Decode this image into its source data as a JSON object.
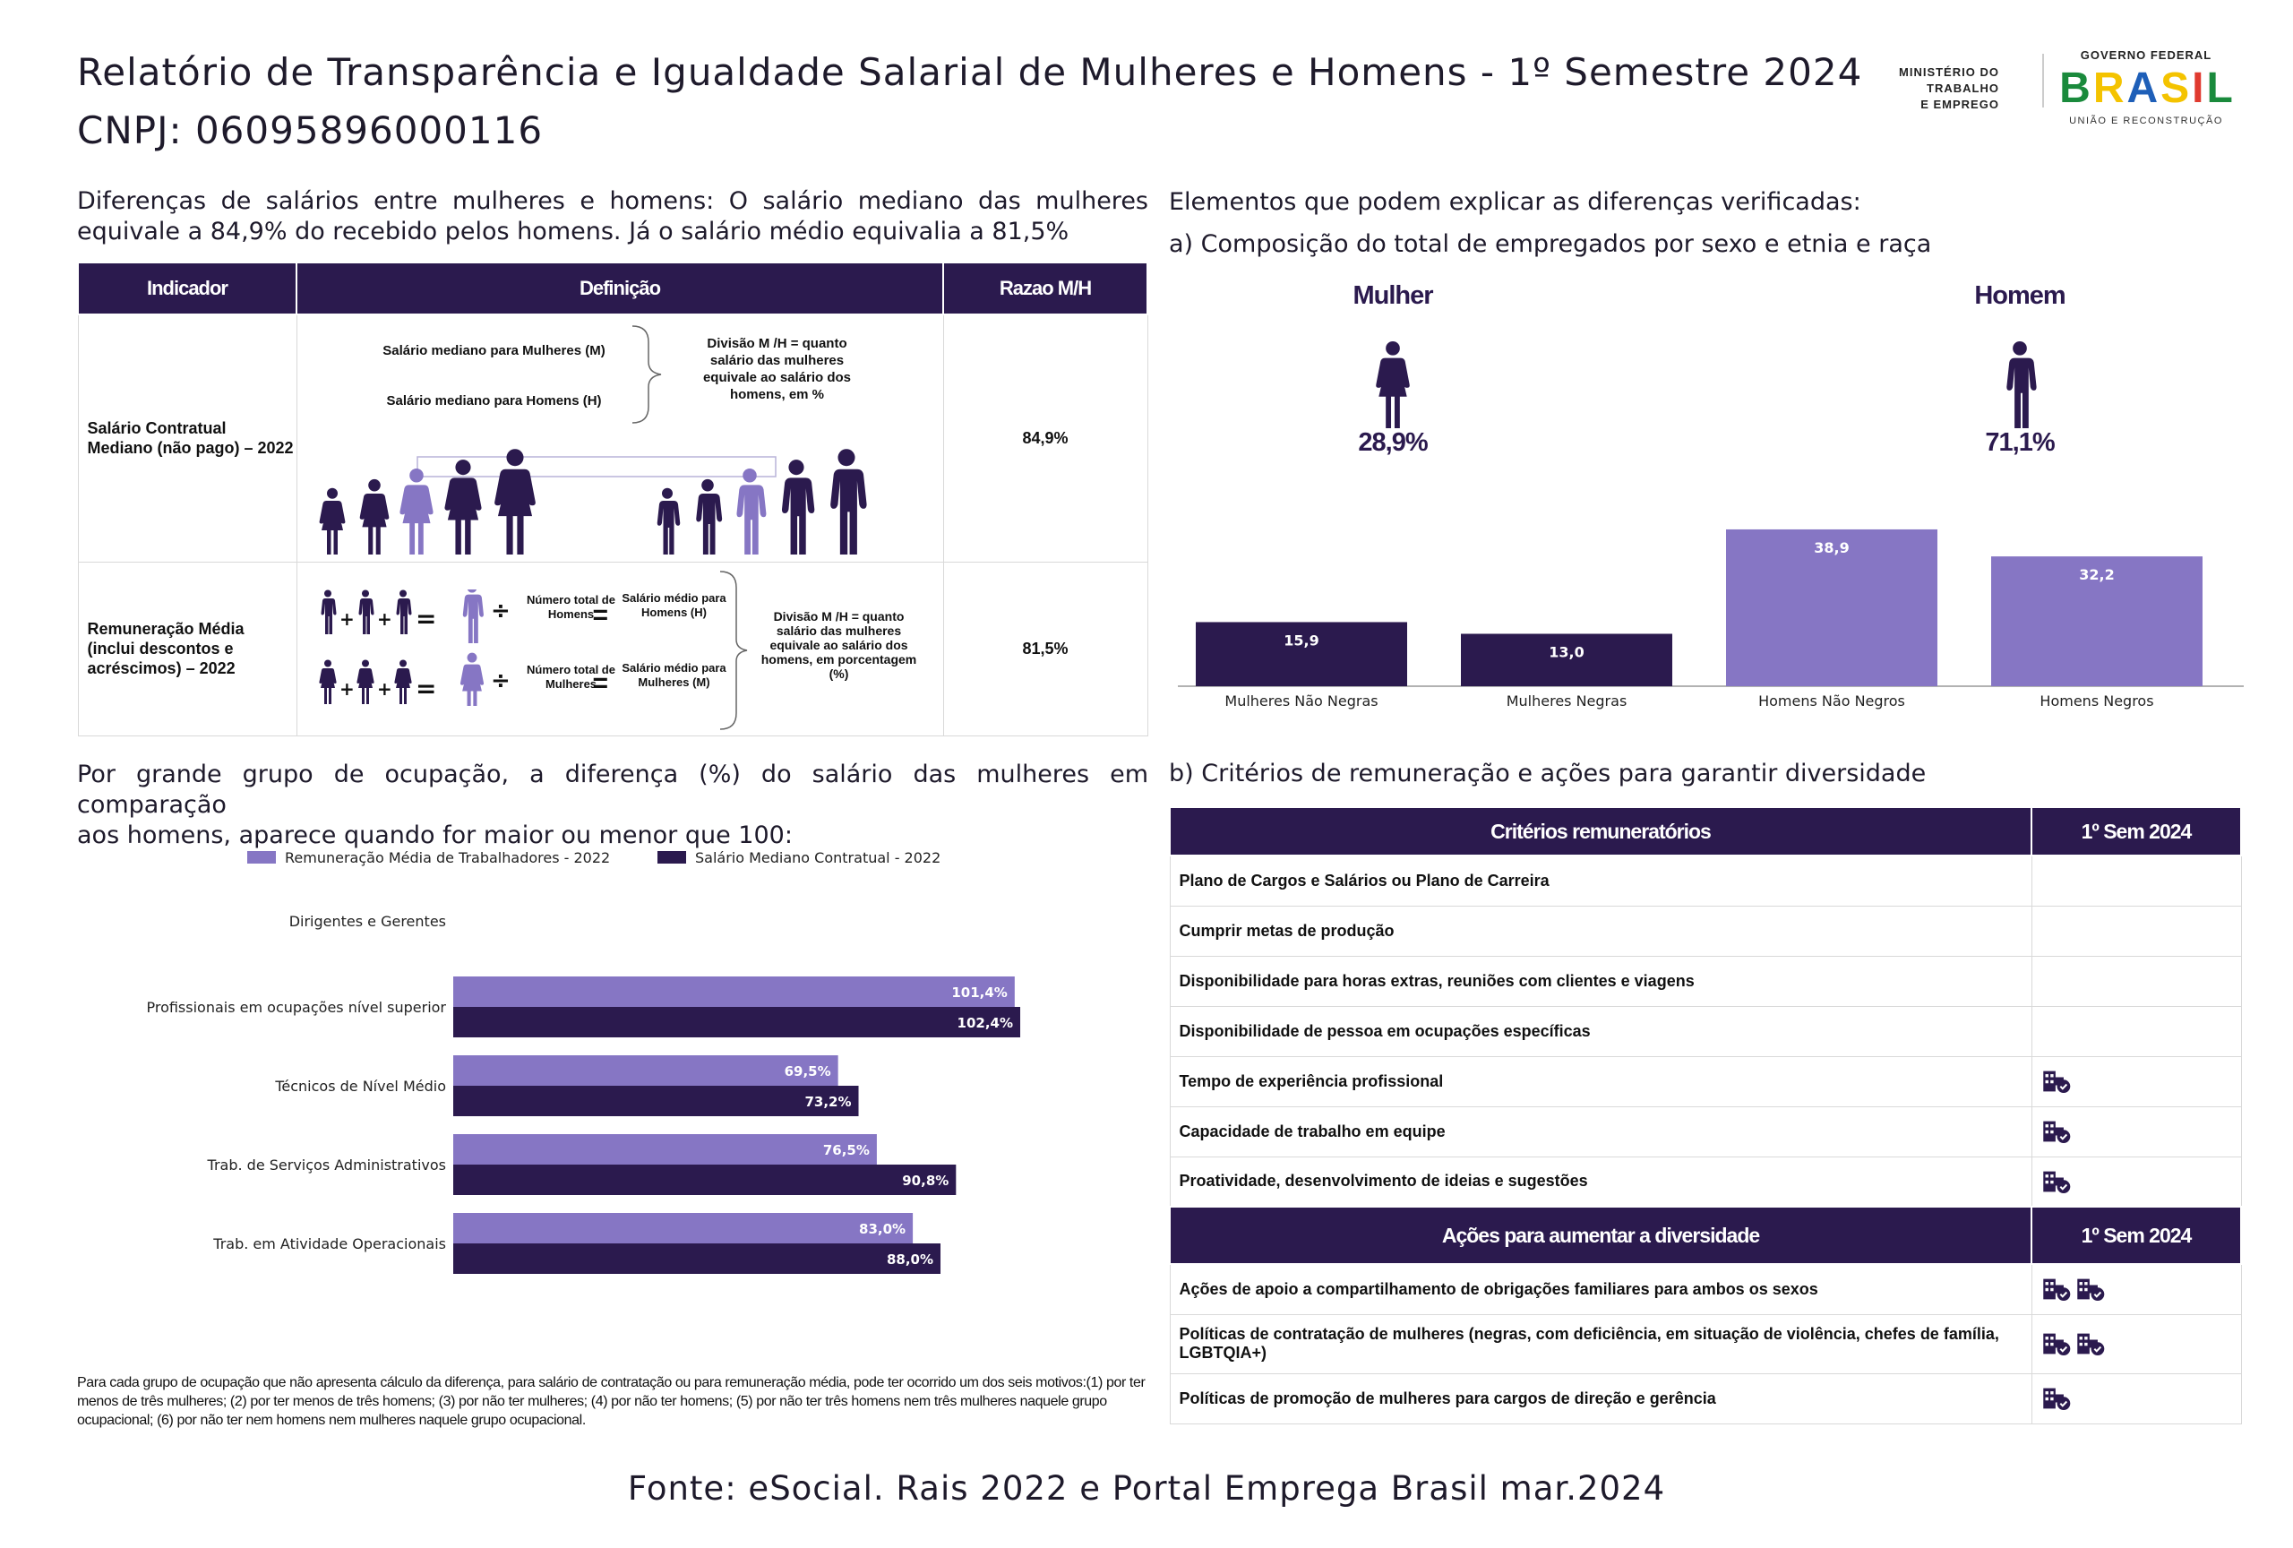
{
  "header": {
    "title_line1": "Relatório de Transparência e Igualdade Salarial de Mulheres e Homens - 1º Semestre 2024",
    "title_line2": "CNPJ: 06095896000116",
    "ministry_l1": "MINISTÉRIO DO",
    "ministry_l2": "TRABALHO",
    "ministry_l3": "E EMPREGO",
    "gov_top": "GOVERNO FEDERAL",
    "gov_brasil": [
      "B",
      "R",
      "A",
      "S",
      "I",
      "L"
    ],
    "gov_bottom": "UNIÃO E RECONSTRUÇÃO"
  },
  "colors": {
    "dark": "#2b1a4e",
    "light": "#8676c4",
    "brasil": [
      "#1a8a3c",
      "#f4c300",
      "#1e5fb8",
      "#f4c300",
      "#e03a2f",
      "#1a8a3c"
    ]
  },
  "intro": {
    "line1": "Diferenças de salários entre mulheres e homens: O salário mediano das mulheres",
    "line2": "equivale a 84,9% do recebido pelos homens. Já o salário médio equivalia a 81,5%"
  },
  "indicator_table": {
    "headers": [
      "Indicador",
      "Definição",
      "Razao M/H"
    ],
    "row1": {
      "indicator": "Salário Contratual Mediano (não pago) – 2022",
      "women_label": "Salário mediano para Mulheres (M)",
      "men_label": "Salário mediano para Homens (H)",
      "division_text": "Divisão M /H = quanto salário das mulheres equivale ao salário dos homens, em %",
      "ratio": "84,9%"
    },
    "row2": {
      "indicator": "Remuneração Média (inclui descontos e acréscimos) – 2022",
      "total_men": "Número total de Homens",
      "total_women": "Número total de Mulheres",
      "avg_men": "Salário médio para Homens (H)",
      "avg_women": "Salário médio para Mulheres (M)",
      "division_text": "Divisão M /H = quanto salário das mulheres equivale ao salário dos homens, em porcentagem (%)",
      "ratio": "81,5%"
    }
  },
  "elements": {
    "heading": "Elementos que podem explicar as diferenças verificadas:",
    "sub_a": "a) Composição do total de empregados por sexo e etnia e raça",
    "woman_label": "Mulher",
    "woman_pct": "28,9%",
    "man_label": "Homem",
    "man_pct": "71,1%"
  },
  "occupation": {
    "line1": "Por grande grupo de ocupação, a diferença (%) do salário das mulheres em comparação",
    "line2": "aos homens, aparece quando for maior ou menor que 100:"
  },
  "chart_data": [
    {
      "type": "bar",
      "title": "",
      "categories": [
        "Mulheres Não Negras",
        "Mulheres Negras",
        "Homens Não Negros",
        "Homens Negros"
      ],
      "values": [
        15.9,
        13.0,
        38.9,
        32.2
      ],
      "labels": [
        "15,9",
        "13,0",
        "38,9",
        "32,2"
      ],
      "colors": [
        "#2b1a4e",
        "#2b1a4e",
        "#8676c4",
        "#8676c4"
      ],
      "ylim": [
        0,
        40
      ]
    },
    {
      "type": "bar",
      "orientation": "horizontal",
      "categories": [
        "Dirigentes e Gerentes",
        "Profissionais em ocupações nível superior",
        "Técnicos de Nível Médio",
        "Trab. de Serviços Administrativos",
        "Trab. em Atividade Operacionais"
      ],
      "series": [
        {
          "name": "Remuneração Média de Trabalhadores - 2022",
          "values": [
            null,
            101.4,
            69.5,
            76.5,
            83.0
          ],
          "labels": [
            "",
            "101,4%",
            "69,5%",
            "76,5%",
            "83,0%"
          ],
          "color": "#8676c4"
        },
        {
          "name": "Salário Mediano Contratual - 2022",
          "values": [
            null,
            102.4,
            73.2,
            90.8,
            88.0
          ],
          "labels": [
            "",
            "102,4%",
            "73,2%",
            "90,8%",
            "88,0%"
          ],
          "color": "#2b1a4e"
        }
      ],
      "xlim": [
        0,
        110
      ]
    }
  ],
  "criteria": {
    "sub_b": "b) Critérios de remuneração e ações para garantir diversidade",
    "header1": "Critérios remuneratórios",
    "header2": "1º Sem 2024",
    "rows": [
      {
        "label": "Plano de Cargos e Salários ou Plano de Carreira",
        "icons": 0
      },
      {
        "label": "Cumprir metas de produção",
        "icons": 0
      },
      {
        "label": "Disponibilidade para horas extras, reuniões com clientes e viagens",
        "icons": 0
      },
      {
        "label": "Disponibilidade de pessoa em ocupações específicas",
        "icons": 0
      },
      {
        "label": "Tempo de experiência profissional",
        "icons": 1
      },
      {
        "label": "Capacidade de trabalho em equipe",
        "icons": 1
      },
      {
        "label": "Proatividade, desenvolvimento de ideias e sugestões",
        "icons": 1
      }
    ],
    "actions_header1": "Ações para aumentar a diversidade",
    "actions_header2": "1º Sem 2024",
    "actions": [
      {
        "label": "Ações de apoio a compartilhamento de obrigações familiares para ambos os sexos",
        "icons": 2
      },
      {
        "label": "Políticas de contratação de mulheres (negras, com deficiência, em situação de violência, chefes de família, LGBTQIA+)",
        "icons": 2
      },
      {
        "label": "Políticas de promoção de mulheres para cargos de direção e gerência",
        "icons": 1
      }
    ]
  },
  "footnote": "Para cada grupo de ocupação que não apresenta cálculo da diferença, para salário de contratação ou para remuneração média, pode ter ocorrido um dos seis motivos:(1) por ter menos de três mulheres; (2) por ter menos de três homens; (3) por não ter mulheres; (4) por não ter homens; (5) por não ter três homens nem três mulheres naquele grupo ocupacional; (6) por não ter nem homens nem mulheres naquele grupo ocupacional.",
  "source": "Fonte: eSocial. Rais 2022 e Portal Emprega Brasil mar.2024"
}
